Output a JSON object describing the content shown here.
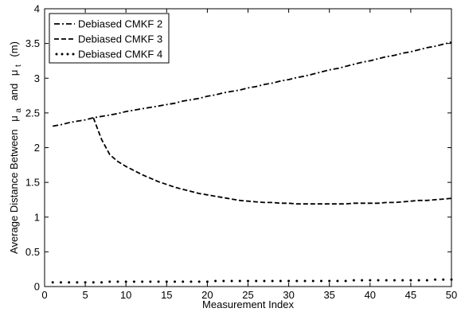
{
  "chart_data": {
    "type": "line",
    "xlabel": "Measurement Index",
    "ylabel": {
      "prefix": "Average Distance Between",
      "mu_a": "μ",
      "sub_a": "a",
      "middle": "and",
      "mu_t": "μ",
      "sub_t": "t",
      "suffix": "(m)"
    },
    "xlim": [
      0,
      50
    ],
    "ylim": [
      0,
      4
    ],
    "xticks": [
      0,
      5,
      10,
      15,
      20,
      25,
      30,
      35,
      40,
      45,
      50
    ],
    "yticks": [
      0,
      0.5,
      1,
      1.5,
      2,
      2.5,
      3,
      3.5,
      4
    ],
    "xtick_labels": [
      "0",
      "5",
      "10",
      "15",
      "20",
      "25",
      "30",
      "35",
      "40",
      "45",
      "50"
    ],
    "ytick_labels": [
      "0",
      "0.5",
      "1",
      "1.5",
      "2",
      "2.5",
      "3",
      "3.5",
      "4"
    ],
    "grid": false,
    "legend_position": "top-left",
    "series": [
      {
        "name": "Debiased CMKF 2",
        "style": "dash-dot",
        "color": "#000000",
        "x": [
          1,
          2,
          3,
          4,
          5,
          6,
          7,
          8,
          9,
          10,
          11,
          12,
          13,
          14,
          15,
          16,
          17,
          18,
          19,
          20,
          21,
          22,
          23,
          24,
          25,
          26,
          27,
          28,
          29,
          30,
          31,
          32,
          33,
          34,
          35,
          36,
          37,
          38,
          39,
          40,
          41,
          42,
          43,
          44,
          45,
          46,
          47,
          48,
          49,
          50
        ],
        "y": [
          2.31,
          2.33,
          2.36,
          2.38,
          2.4,
          2.43,
          2.45,
          2.47,
          2.49,
          2.52,
          2.54,
          2.56,
          2.58,
          2.6,
          2.62,
          2.64,
          2.67,
          2.69,
          2.71,
          2.74,
          2.76,
          2.79,
          2.81,
          2.83,
          2.86,
          2.88,
          2.91,
          2.93,
          2.96,
          2.98,
          3.01,
          3.03,
          3.06,
          3.09,
          3.12,
          3.14,
          3.17,
          3.2,
          3.23,
          3.25,
          3.28,
          3.31,
          3.33,
          3.36,
          3.38,
          3.41,
          3.44,
          3.46,
          3.49,
          3.52
        ]
      },
      {
        "name": "Debiased CMKF 3",
        "style": "dashed",
        "color": "#000000",
        "x": [
          6,
          7,
          8,
          9,
          10,
          11,
          12,
          13,
          14,
          15,
          16,
          17,
          18,
          19,
          20,
          21,
          22,
          23,
          24,
          25,
          26,
          27,
          28,
          29,
          30,
          31,
          32,
          33,
          34,
          35,
          36,
          37,
          38,
          39,
          40,
          41,
          42,
          43,
          44,
          45,
          46,
          47,
          48,
          49,
          50
        ],
        "y": [
          2.43,
          2.12,
          1.9,
          1.8,
          1.73,
          1.67,
          1.61,
          1.56,
          1.51,
          1.47,
          1.43,
          1.4,
          1.37,
          1.34,
          1.32,
          1.3,
          1.28,
          1.26,
          1.24,
          1.23,
          1.22,
          1.21,
          1.21,
          1.2,
          1.2,
          1.19,
          1.19,
          1.19,
          1.19,
          1.19,
          1.19,
          1.19,
          1.2,
          1.2,
          1.2,
          1.2,
          1.21,
          1.21,
          1.22,
          1.23,
          1.24,
          1.24,
          1.25,
          1.26,
          1.27
        ]
      },
      {
        "name": "Debiased CMKF 4",
        "style": "dotted",
        "color": "#000000",
        "x": [
          1,
          2,
          3,
          4,
          5,
          6,
          7,
          8,
          9,
          10,
          11,
          12,
          13,
          14,
          15,
          16,
          17,
          18,
          19,
          20,
          21,
          22,
          23,
          24,
          25,
          26,
          27,
          28,
          29,
          30,
          31,
          32,
          33,
          34,
          35,
          36,
          37,
          38,
          39,
          40,
          41,
          42,
          43,
          44,
          45,
          46,
          47,
          48,
          49,
          50
        ],
        "y": [
          0.06,
          0.06,
          0.06,
          0.06,
          0.06,
          0.06,
          0.06,
          0.07,
          0.07,
          0.07,
          0.07,
          0.07,
          0.07,
          0.07,
          0.07,
          0.07,
          0.07,
          0.07,
          0.07,
          0.07,
          0.08,
          0.08,
          0.08,
          0.08,
          0.08,
          0.08,
          0.08,
          0.08,
          0.08,
          0.08,
          0.08,
          0.08,
          0.08,
          0.08,
          0.08,
          0.08,
          0.08,
          0.09,
          0.09,
          0.09,
          0.09,
          0.09,
          0.09,
          0.09,
          0.09,
          0.09,
          0.09,
          0.1,
          0.1,
          0.1
        ]
      }
    ]
  }
}
